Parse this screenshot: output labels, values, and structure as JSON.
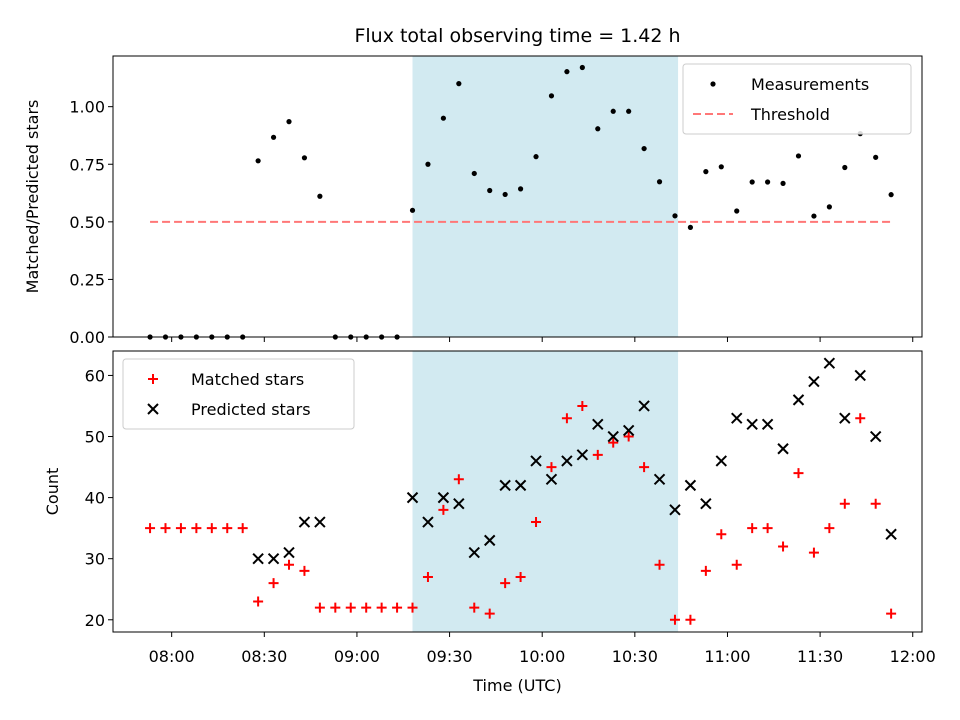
{
  "chart_data": [
    {
      "type": "scatter",
      "title": "Flux total observing time = 1.42 h",
      "xlabel": "",
      "ylabel": "Matched/Predicted stars",
      "xlim": [
        "07:41",
        "12:03"
      ],
      "ylim": [
        0.0,
        1.22
      ],
      "yticks": [
        0.0,
        0.25,
        0.5,
        0.75,
        1.0
      ],
      "ytick_labels": [
        "0.00",
        "0.25",
        "0.50",
        "0.75",
        "1.00"
      ],
      "shaded_interval": {
        "start": "09:18",
        "end": "10:44",
        "color": "#add8e6"
      },
      "legend_position": "top-right",
      "series": [
        {
          "name": "Measurements",
          "marker": "dot",
          "color": "#000000",
          "points": [
            [
              "07:53",
              0.0
            ],
            [
              "07:58",
              0.0
            ],
            [
              "08:03",
              0.0
            ],
            [
              "08:08",
              0.0
            ],
            [
              "08:13",
              0.0
            ],
            [
              "08:18",
              0.0
            ],
            [
              "08:23",
              0.0
            ],
            [
              "08:28",
              0.765
            ],
            [
              "08:33",
              0.867
            ],
            [
              "08:38",
              0.935
            ],
            [
              "08:43",
              0.778
            ],
            [
              "08:48",
              0.611
            ],
            [
              "08:53",
              0.0
            ],
            [
              "08:58",
              0.0
            ],
            [
              "09:03",
              0.0
            ],
            [
              "09:08",
              0.0
            ],
            [
              "09:13",
              0.0
            ],
            [
              "09:18",
              0.55
            ],
            [
              "09:23",
              0.75
            ],
            [
              "09:28",
              0.95
            ],
            [
              "09:33",
              1.1
            ],
            [
              "09:38",
              0.71
            ],
            [
              "09:43",
              0.636
            ],
            [
              "09:48",
              0.619
            ],
            [
              "09:53",
              0.643
            ],
            [
              "09:58",
              0.783
            ],
            [
              "10:03",
              1.047
            ],
            [
              "10:08",
              1.152
            ],
            [
              "10:13",
              1.17
            ],
            [
              "10:18",
              0.904
            ],
            [
              "10:23",
              0.98
            ],
            [
              "10:28",
              0.98
            ],
            [
              "10:33",
              0.818
            ],
            [
              "10:38",
              0.674
            ],
            [
              "10:43",
              0.526
            ],
            [
              "10:48",
              0.476
            ],
            [
              "10:53",
              0.718
            ],
            [
              "10:58",
              0.739
            ],
            [
              "11:03",
              0.547
            ],
            [
              "11:08",
              0.673
            ],
            [
              "11:13",
              0.673
            ],
            [
              "11:18",
              0.667
            ],
            [
              "11:23",
              0.786
            ],
            [
              "11:28",
              0.525
            ],
            [
              "11:33",
              0.565
            ],
            [
              "11:38",
              0.736
            ],
            [
              "11:43",
              0.883
            ],
            [
              "11:48",
              0.78
            ],
            [
              "11:53",
              0.618
            ]
          ]
        },
        {
          "name": "Threshold",
          "line_style": "dashed",
          "color": "#ff7777",
          "points": [
            [
              "07:53",
              0.5
            ],
            [
              "11:53",
              0.5
            ]
          ]
        }
      ]
    },
    {
      "type": "scatter",
      "title": "",
      "xlabel": "Time (UTC)",
      "ylabel": "Count",
      "xlim": [
        "07:41",
        "12:03"
      ],
      "ylim": [
        18,
        64
      ],
      "yticks": [
        20,
        30,
        40,
        50,
        60
      ],
      "ytick_labels": [
        "20",
        "30",
        "40",
        "50",
        "60"
      ],
      "xticks": [
        "08:00",
        "08:30",
        "09:00",
        "09:30",
        "10:00",
        "10:30",
        "11:00",
        "11:30",
        "12:00"
      ],
      "shaded_interval": {
        "start": "09:18",
        "end": "10:44",
        "color": "#add8e6"
      },
      "legend_position": "top-left",
      "series": [
        {
          "name": "Matched stars",
          "marker": "plus",
          "color": "#ff0000",
          "points": [
            [
              "07:53",
              35
            ],
            [
              "07:58",
              35
            ],
            [
              "08:03",
              35
            ],
            [
              "08:08",
              35
            ],
            [
              "08:13",
              35
            ],
            [
              "08:18",
              35
            ],
            [
              "08:23",
              35
            ],
            [
              "08:28",
              23
            ],
            [
              "08:33",
              26
            ],
            [
              "08:38",
              29
            ],
            [
              "08:43",
              28
            ],
            [
              "08:48",
              22
            ],
            [
              "08:53",
              22
            ],
            [
              "08:58",
              22
            ],
            [
              "09:03",
              22
            ],
            [
              "09:08",
              22
            ],
            [
              "09:13",
              22
            ],
            [
              "09:18",
              22
            ],
            [
              "09:23",
              27
            ],
            [
              "09:28",
              38
            ],
            [
              "09:33",
              43
            ],
            [
              "09:38",
              22
            ],
            [
              "09:43",
              21
            ],
            [
              "09:48",
              26
            ],
            [
              "09:53",
              27
            ],
            [
              "09:58",
              36
            ],
            [
              "10:03",
              45
            ],
            [
              "10:08",
              53
            ],
            [
              "10:13",
              55
            ],
            [
              "10:18",
              47
            ],
            [
              "10:23",
              49
            ],
            [
              "10:28",
              50
            ],
            [
              "10:33",
              45
            ],
            [
              "10:38",
              29
            ],
            [
              "10:43",
              20
            ],
            [
              "10:48",
              20
            ],
            [
              "10:53",
              28
            ],
            [
              "10:58",
              34
            ],
            [
              "11:03",
              29
            ],
            [
              "11:08",
              35
            ],
            [
              "11:13",
              35
            ],
            [
              "11:18",
              32
            ],
            [
              "11:23",
              44
            ],
            [
              "11:28",
              31
            ],
            [
              "11:33",
              35
            ],
            [
              "11:38",
              39
            ],
            [
              "11:43",
              53
            ],
            [
              "11:48",
              39
            ],
            [
              "11:53",
              21
            ]
          ]
        },
        {
          "name": "Predicted stars",
          "marker": "x",
          "color": "#000000",
          "points": [
            [
              "08:28",
              30
            ],
            [
              "08:33",
              30
            ],
            [
              "08:38",
              31
            ],
            [
              "08:43",
              36
            ],
            [
              "08:48",
              36
            ],
            [
              "09:18",
              40
            ],
            [
              "09:23",
              36
            ],
            [
              "09:28",
              40
            ],
            [
              "09:33",
              39
            ],
            [
              "09:38",
              31
            ],
            [
              "09:43",
              33
            ],
            [
              "09:48",
              42
            ],
            [
              "09:53",
              42
            ],
            [
              "09:58",
              46
            ],
            [
              "10:03",
              43
            ],
            [
              "10:08",
              46
            ],
            [
              "10:13",
              47
            ],
            [
              "10:18",
              52
            ],
            [
              "10:23",
              50
            ],
            [
              "10:28",
              51
            ],
            [
              "10:33",
              55
            ],
            [
              "10:38",
              43
            ],
            [
              "10:43",
              38
            ],
            [
              "10:48",
              42
            ],
            [
              "10:53",
              39
            ],
            [
              "10:58",
              46
            ],
            [
              "11:03",
              53
            ],
            [
              "11:08",
              52
            ],
            [
              "11:13",
              52
            ],
            [
              "11:18",
              48
            ],
            [
              "11:23",
              56
            ],
            [
              "11:28",
              59
            ],
            [
              "11:33",
              62
            ],
            [
              "11:38",
              53
            ],
            [
              "11:43",
              60
            ],
            [
              "11:48",
              50
            ],
            [
              "11:53",
              34
            ]
          ]
        }
      ]
    }
  ]
}
